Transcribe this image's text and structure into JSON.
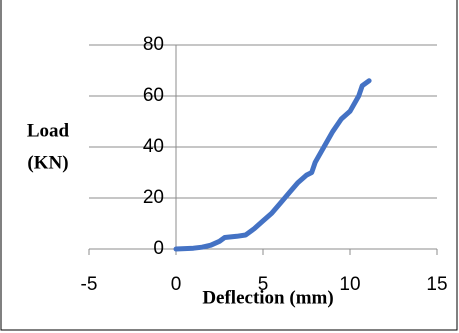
{
  "chart_data": {
    "type": "line",
    "x_label": "Deflection (mm)",
    "y_label_lines": [
      "Load",
      "(KN)"
    ],
    "series": [
      {
        "name": "Load",
        "color": "#4472c4",
        "x": [
          0,
          1,
          1.5,
          2,
          2.5,
          2.8,
          3.5,
          4,
          4.5,
          5,
          5.5,
          6,
          6.5,
          7,
          7.5,
          7.8,
          8,
          8.5,
          9,
          9.5,
          10,
          10.5,
          10.7,
          11.1
        ],
        "values": [
          0,
          0.3,
          0.7,
          1.5,
          3,
          4.5,
          5,
          5.5,
          8,
          11,
          14,
          18,
          22,
          26,
          29,
          30,
          34,
          40,
          46,
          51,
          54,
          60,
          64,
          66
        ]
      }
    ],
    "xlim": [
      -5,
      15
    ],
    "xticks": [
      -5,
      0,
      5,
      10,
      15
    ],
    "ylim": [
      0,
      80
    ],
    "yticks": [
      0,
      20,
      40,
      60,
      80
    ],
    "grid": true
  }
}
